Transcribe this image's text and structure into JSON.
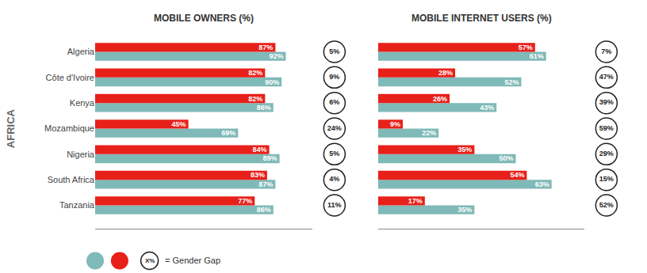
{
  "chart_data": [
    {
      "type": "bar",
      "orientation": "horizontal",
      "title": "MOBILE OWNERS (%)",
      "categories": [
        "Algeria",
        "Côte d'Ivoire",
        "Kenya",
        "Mozambique",
        "Nigeria",
        "South Africa",
        "Tanzania"
      ],
      "series": [
        {
          "color": "#7fb9b8",
          "values": [
            92,
            90,
            86,
            69,
            89,
            87,
            86
          ],
          "value_labels": [
            "92%",
            "90%",
            "86%",
            "69%",
            "89%",
            "87%",
            "86%"
          ]
        },
        {
          "color": "#e8201a",
          "values": [
            87,
            82,
            82,
            45,
            84,
            83,
            77
          ],
          "value_labels": [
            "87%",
            "82%",
            "82%",
            "45%",
            "84%",
            "83%",
            "77%"
          ]
        }
      ],
      "gender_gap": {
        "values": [
          5,
          9,
          6,
          24,
          5,
          4,
          11
        ],
        "value_labels": [
          "5%",
          "9%",
          "6%",
          "24%",
          "5%",
          "4%",
          "11%"
        ]
      },
      "xlim": [
        0,
        105
      ],
      "grid": false,
      "data_labels": true,
      "tick_labels": "y",
      "annotations": [
        {
          "text": "AFRICA"
        },
        {
          "text": "X%"
        },
        {
          "text": "= Gender Gap"
        }
      ]
    },
    {
      "type": "bar",
      "orientation": "horizontal",
      "title": "MOBILE INTERNET USERS (%)",
      "categories": [
        "Algeria",
        "Côte d'Ivoire",
        "Kenya",
        "Mozambique",
        "Nigeria",
        "South Africa",
        "Tanzania"
      ],
      "series": [
        {
          "color": "#7fb9b8",
          "values": [
            61,
            52,
            43,
            22,
            50,
            63,
            35
          ],
          "value_labels": [
            "61%",
            "52%",
            "43%",
            "22%",
            "50%",
            "63%",
            "35%"
          ]
        },
        {
          "color": "#e8201a",
          "values": [
            57,
            28,
            26,
            9,
            35,
            54,
            17
          ],
          "value_labels": [
            "57%",
            "28%",
            "26%",
            "9%",
            "35%",
            "54%",
            "17%"
          ]
        }
      ],
      "gender_gap": {
        "values": [
          7,
          47,
          39,
          59,
          29,
          15,
          52
        ],
        "value_labels": [
          "7%",
          "47%",
          "39%",
          "59%",
          "29%",
          "15%",
          "52%"
        ]
      },
      "xlim": [
        0,
        75
      ],
      "grid": false,
      "data_labels": true,
      "tick_labels": false
    }
  ]
}
